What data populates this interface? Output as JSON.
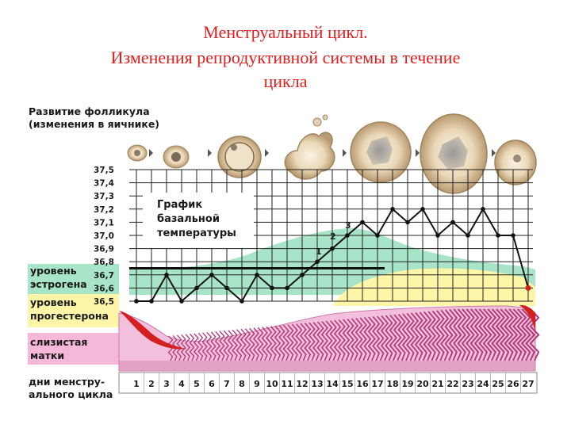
{
  "title": {
    "line1": "Менструальный цикл.",
    "line2": "Изменения репродуктивной системы в течение",
    "line3": "цикла"
  },
  "follicle": {
    "label_line1": "Развитие фолликула",
    "label_line2": "(изменения в яичнике)"
  },
  "graph": {
    "title_line1": "График",
    "title_line2": "базальной",
    "title_line3": "температуры",
    "phase_markers": [
      "1",
      "2",
      "3"
    ]
  },
  "bands": {
    "estrogen_line1": "уровень",
    "estrogen_line2": "эстрогена",
    "progesterone_line1": "уровень",
    "progesterone_line2": "прогестерона",
    "mucosa_line1": "слизистая",
    "mucosa_line2": "матки",
    "days_line1": "дни менстру-",
    "days_line2": "ального цикла"
  },
  "colors": {
    "title": "#e02020",
    "estrogen": "#a8e4c8",
    "progesterone": "#fdf6a8",
    "mucosa_label": "#f5b8d8",
    "mucosa": "#e89ac8",
    "menstruation": "#d42020"
  },
  "chart_data": {
    "type": "line",
    "y_ticks": [
      "37,5",
      "37,4",
      "37,3",
      "37,2",
      "37,1",
      "37,0",
      "36,9",
      "36,8",
      "36,7",
      "36,6",
      "36,5"
    ],
    "ylim": [
      36.5,
      37.5
    ],
    "x": [
      "1",
      "2",
      "3",
      "4",
      "5",
      "6",
      "7",
      "8",
      "9",
      "10",
      "11",
      "12",
      "13",
      "14",
      "15",
      "16",
      "17",
      "18",
      "19",
      "20",
      "21",
      "22",
      "23",
      "24",
      "25",
      "26",
      "27"
    ],
    "series": [
      {
        "values": [
          36.5,
          36.5,
          36.7,
          36.5,
          36.6,
          36.7,
          36.6,
          36.5,
          36.7,
          36.6,
          36.6,
          36.7,
          36.8,
          36.9,
          37.0,
          37.1,
          37.0,
          37.2,
          37.1,
          37.2,
          37.0,
          37.1,
          37.0,
          37.2,
          37.0,
          37.0,
          36.6
        ]
      }
    ],
    "reference_line": 36.75
  }
}
